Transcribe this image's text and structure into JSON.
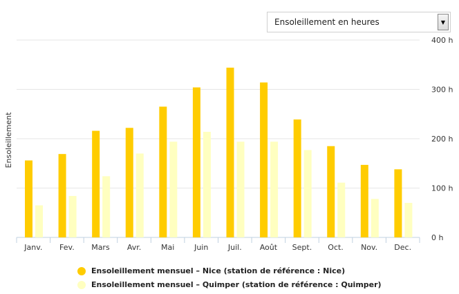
{
  "dropdown": {
    "selected": "Ensoleillement en heures",
    "arrow_icon": "triangle-down-icon"
  },
  "chart_data": {
    "type": "bar",
    "categories": [
      "Janv.",
      "Fev.",
      "Mars",
      "Avr.",
      "Mai",
      "Juin",
      "Juil.",
      "Août",
      "Sept.",
      "Oct.",
      "Nov.",
      "Dec."
    ],
    "series": [
      {
        "name": "Ensoleillement mensuel – Nice (station de référence : Nice)",
        "color": "#ffcc00",
        "values": [
          156,
          169,
          216,
          222,
          265,
          304,
          344,
          314,
          239,
          185,
          147,
          138
        ]
      },
      {
        "name": "Ensoleillement mensuel – Quimper (station de référence : Quimper)",
        "color": "#ffffc0",
        "values": [
          65,
          84,
          124,
          170,
          194,
          214,
          194,
          194,
          177,
          111,
          78,
          70
        ]
      }
    ],
    "ylabel": "Ensoleillement",
    "ylim": [
      0,
      400
    ],
    "yticks": [
      "0 h",
      "100 h",
      "200 h",
      "300 h",
      "400 h"
    ],
    "ytick_values": [
      0,
      100,
      200,
      300,
      400
    ],
    "y_axis_side": "right",
    "grid": true,
    "legend_position": "bottom"
  }
}
